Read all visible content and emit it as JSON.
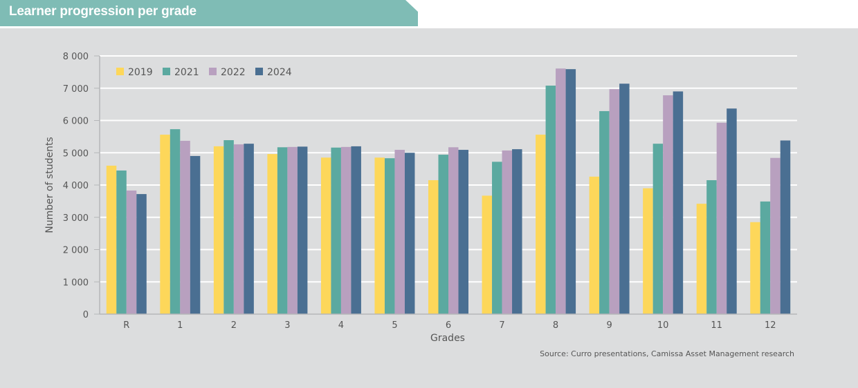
{
  "header": {
    "title": "Learner progression per grade"
  },
  "source": "Source: Curro presentations, Camissa Asset Management research",
  "colors": {
    "header_bg": "#7fbcb5",
    "panel_bg": "#dcddde",
    "2019": "#fdd75a",
    "2021": "#5ba9a0",
    "2022": "#b8a0bf",
    "2024": "#4a6f92"
  },
  "chart_data": {
    "type": "bar",
    "title": "Learner progression per grade",
    "xlabel": "Grades",
    "ylabel": "Number of students",
    "ylim": [
      0,
      8000
    ],
    "yticks": [
      0,
      1000,
      2000,
      3000,
      4000,
      5000,
      6000,
      7000,
      8000
    ],
    "ytick_labels": [
      "0",
      "1 000",
      "2 000",
      "3 000",
      "4 000",
      "5 000",
      "6 000",
      "7 000",
      "8 000"
    ],
    "grid": true,
    "legend_position": "top-left",
    "categories": [
      "R",
      "1",
      "2",
      "3",
      "4",
      "5",
      "6",
      "7",
      "8",
      "9",
      "10",
      "11",
      "12"
    ],
    "series": [
      {
        "name": "2019",
        "color": "#fdd75a",
        "values": [
          4600,
          5560,
          5200,
          4960,
          4850,
          4850,
          4150,
          3670,
          5560,
          4260,
          3900,
          3420,
          2850
        ]
      },
      {
        "name": "2021",
        "color": "#5ba9a0",
        "values": [
          4450,
          5730,
          5390,
          5170,
          5160,
          4830,
          4940,
          4720,
          7080,
          6290,
          5280,
          4150,
          3490
        ]
      },
      {
        "name": "2022",
        "color": "#b8a0bf",
        "values": [
          3830,
          5370,
          5260,
          5180,
          5180,
          5090,
          5170,
          5070,
          7610,
          6970,
          6780,
          5930,
          4840
        ]
      },
      {
        "name": "2024",
        "color": "#4a6f92",
        "values": [
          3720,
          4900,
          5280,
          5190,
          5200,
          5000,
          5090,
          5110,
          7590,
          7140,
          6900,
          6370,
          5380
        ]
      }
    ]
  }
}
